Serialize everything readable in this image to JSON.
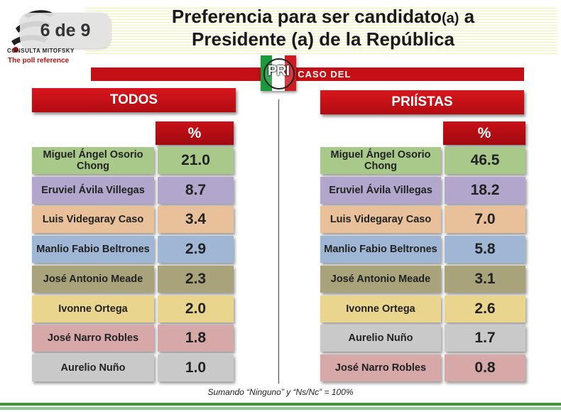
{
  "logo": {
    "caption": "CONSULTA MITOFSKY",
    "tagline": "The poll reference"
  },
  "badge": {
    "page_indicator": "6 de 9"
  },
  "header": {
    "title_line1_main": "Preferencia para ser candidato",
    "title_line1_small": "(a)",
    "title_line1_end": " a",
    "title_line2": "Presidente (a) de la República",
    "subtitle": "EN EL CASO DEL",
    "party_logo_text": "PRI"
  },
  "colors": {
    "red": "#c50f16",
    "green": "#a8c98a",
    "purple": "#b3a6cc",
    "peach": "#e8c09a",
    "blue": "#9fb6d4",
    "olive": "#a8a37a",
    "yellow": "#e9d58d",
    "pink": "#d6a8a8",
    "gray": "#c9c9c9"
  },
  "chart_data": [
    {
      "type": "table",
      "title": "TODOS",
      "column_header": "%",
      "rows": [
        {
          "name": "Miguel Ángel Osorio Chong",
          "value": "21.0",
          "color": "#a8c98a"
        },
        {
          "name": "Eruviel Ávila Villegas",
          "value": "8.7",
          "color": "#b3a6cc"
        },
        {
          "name": "Luis Videgaray Caso",
          "value": "3.4",
          "color": "#e8c09a"
        },
        {
          "name": "Manlio Fabio Beltrones",
          "value": "2.9",
          "color": "#9fb6d4"
        },
        {
          "name": "José Antonio Meade",
          "value": "2.3",
          "color": "#a8a37a"
        },
        {
          "name": "Ivonne Ortega",
          "value": "2.0",
          "color": "#e9d58d"
        },
        {
          "name": "José Narro Robles",
          "value": "1.8",
          "color": "#d6a8a8"
        },
        {
          "name": "Aurelio Nuño",
          "value": "1.0",
          "color": "#c9c9c9"
        }
      ]
    },
    {
      "type": "table",
      "title": "PRIÍSTAS",
      "column_header": "%",
      "rows": [
        {
          "name": "Miguel Ángel Osorio Chong",
          "value": "46.5",
          "color": "#a8c98a"
        },
        {
          "name": "Eruviel Ávila Villegas",
          "value": "18.2",
          "color": "#b3a6cc"
        },
        {
          "name": "Luis Videgaray Caso",
          "value": "7.0",
          "color": "#e8c09a"
        },
        {
          "name": "Manlio Fabio Beltrones",
          "value": "5.8",
          "color": "#9fb6d4"
        },
        {
          "name": "José Antonio Meade",
          "value": "3.1",
          "color": "#a8a37a"
        },
        {
          "name": "Ivonne Ortega",
          "value": "2.6",
          "color": "#e9d58d"
        },
        {
          "name": "Aurelio Nuño",
          "value": "1.7",
          "color": "#c9c9c9"
        },
        {
          "name": "José Narro Robles",
          "value": "0.8",
          "color": "#d6a8a8"
        }
      ]
    }
  ],
  "footnote": "Sumando “Ninguno” y “Ns/Nc” = 100%"
}
